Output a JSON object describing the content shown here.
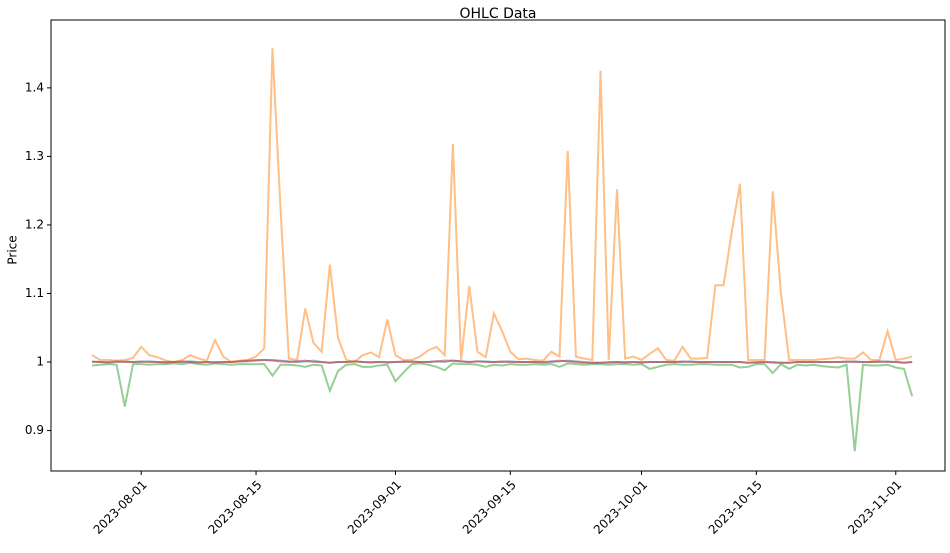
{
  "chart_data": {
    "type": "line",
    "title": "OHLC Data",
    "y_label": "Price",
    "x": [
      "2023-07-26",
      "2023-07-27",
      "2023-07-28",
      "2023-07-29",
      "2023-07-30",
      "2023-07-31",
      "2023-08-01",
      "2023-08-02",
      "2023-08-03",
      "2023-08-04",
      "2023-08-05",
      "2023-08-06",
      "2023-08-07",
      "2023-08-08",
      "2023-08-09",
      "2023-08-10",
      "2023-08-11",
      "2023-08-12",
      "2023-08-13",
      "2023-08-14",
      "2023-08-15",
      "2023-08-16",
      "2023-08-17",
      "2023-08-18",
      "2023-08-19",
      "2023-08-20",
      "2023-08-21",
      "2023-08-22",
      "2023-08-23",
      "2023-08-24",
      "2023-08-25",
      "2023-08-26",
      "2023-08-27",
      "2023-08-28",
      "2023-08-29",
      "2023-08-30",
      "2023-08-31",
      "2023-09-01",
      "2023-09-02",
      "2023-09-03",
      "2023-09-04",
      "2023-09-05",
      "2023-09-06",
      "2023-09-07",
      "2023-09-08",
      "2023-09-09",
      "2023-09-10",
      "2023-09-11",
      "2023-09-12",
      "2023-09-13",
      "2023-09-14",
      "2023-09-15",
      "2023-09-16",
      "2023-09-17",
      "2023-09-18",
      "2023-09-19",
      "2023-09-20",
      "2023-09-21",
      "2023-09-22",
      "2023-09-23",
      "2023-09-24",
      "2023-09-25",
      "2023-09-26",
      "2023-09-27",
      "2023-09-28",
      "2023-09-29",
      "2023-09-30",
      "2023-10-01",
      "2023-10-02",
      "2023-10-03",
      "2023-10-04",
      "2023-10-05",
      "2023-10-06",
      "2023-10-07",
      "2023-10-08",
      "2023-10-09",
      "2023-10-10",
      "2023-10-11",
      "2023-10-12",
      "2023-10-13",
      "2023-10-14",
      "2023-10-15",
      "2023-10-16",
      "2023-10-17",
      "2023-10-18",
      "2023-10-19",
      "2023-10-20",
      "2023-10-21",
      "2023-10-22",
      "2023-10-23",
      "2023-10-24",
      "2023-10-25",
      "2023-10-26",
      "2023-10-27",
      "2023-10-28",
      "2023-10-29",
      "2023-10-30",
      "2023-10-31",
      "2023-11-01",
      "2023-11-02",
      "2023-11-03"
    ],
    "series": [
      {
        "color": "#1f77b4",
        "values": [
          1.001,
          1.0,
          0.999,
          1.0,
          1.001,
          1.0,
          1.0,
          1.001,
          1.0,
          0.999,
          1.0,
          1.0,
          1.001,
          1.0,
          1.0,
          0.999,
          1.0,
          1.0,
          1.001,
          1.001,
          1.002,
          1.003,
          1.003,
          1.002,
          1.001,
          1.0,
          1.001,
          1.002,
          1.0,
          0.999,
          1.0,
          1.0,
          1.001,
          1.0,
          1.0,
          1.0,
          0.999,
          1.0,
          1.0,
          1.001,
          1.0,
          1.0,
          1.001,
          1.0,
          1.002,
          1.001,
          1.0,
          1.001,
          1.001,
          1.0,
          1.0,
          1.001,
          1.0,
          1.0,
          1.0,
          0.999,
          1.0,
          1.001,
          1.002,
          1.001,
          1.0,
          0.999,
          0.999,
          0.999,
          1.0,
          1.0,
          1.0,
          0.999,
          1.0,
          1.0,
          1.0,
          1.0,
          1.0,
          1.001,
          1.0,
          1.0,
          1.0,
          1.0,
          1.0,
          1.0,
          0.999,
          0.999,
          1.0,
          1.0,
          0.999,
          0.999,
          1.0,
          1.0,
          1.0,
          1.0,
          1.0,
          1.0,
          1.0,
          1.001,
          1.0,
          1.0,
          1.0,
          1.001,
          1.0,
          0.999,
          1.0
        ]
      },
      {
        "color": "#ff7f0e",
        "values": [
          1.01,
          1.003,
          1.003,
          1.002,
          1.003,
          1.006,
          1.022,
          1.01,
          1.007,
          1.002,
          1.0,
          1.003,
          1.01,
          1.005,
          1.002,
          1.032,
          1.008,
          1.0,
          1.002,
          1.003,
          1.008,
          1.02,
          1.458,
          1.22,
          1.005,
          1.003,
          1.078,
          1.028,
          1.015,
          1.142,
          1.035,
          1.003,
          1.0,
          1.01,
          1.014,
          1.007,
          1.062,
          1.01,
          1.003,
          1.003,
          1.008,
          1.017,
          1.022,
          1.01,
          1.318,
          1.003,
          1.111,
          1.015,
          1.007,
          1.071,
          1.045,
          1.015,
          1.004,
          1.005,
          1.003,
          1.002,
          1.015,
          1.008,
          1.308,
          1.008,
          1.005,
          1.003,
          1.425,
          1.003,
          1.252,
          1.005,
          1.008,
          1.003,
          1.012,
          1.02,
          1.003,
          1.002,
          1.022,
          1.005,
          1.005,
          1.006,
          1.112,
          1.112,
          1.19,
          1.26,
          1.003,
          1.003,
          1.003,
          1.249,
          1.1,
          1.003,
          1.003,
          1.003,
          1.003,
          1.004,
          1.005,
          1.007,
          1.005,
          1.005,
          1.014,
          1.003,
          1.003,
          1.045,
          1.003,
          1.005,
          1.008
        ]
      },
      {
        "color": "#2ca02c",
        "values": [
          0.995,
          0.996,
          0.997,
          0.996,
          0.935,
          0.997,
          0.997,
          0.996,
          0.997,
          0.997,
          0.998,
          0.997,
          0.999,
          0.997,
          0.996,
          0.998,
          0.997,
          0.996,
          0.997,
          0.997,
          0.997,
          0.997,
          0.98,
          0.996,
          0.996,
          0.995,
          0.993,
          0.996,
          0.995,
          0.958,
          0.987,
          0.996,
          0.997,
          0.993,
          0.993,
          0.995,
          0.996,
          0.972,
          0.985,
          0.997,
          0.998,
          0.996,
          0.993,
          0.988,
          0.998,
          0.997,
          0.997,
          0.996,
          0.993,
          0.996,
          0.995,
          0.997,
          0.996,
          0.996,
          0.997,
          0.996,
          0.997,
          0.993,
          0.998,
          0.997,
          0.996,
          0.997,
          0.997,
          0.996,
          0.997,
          0.997,
          0.996,
          0.997,
          0.99,
          0.993,
          0.996,
          0.997,
          0.996,
          0.996,
          0.997,
          0.997,
          0.996,
          0.996,
          0.996,
          0.992,
          0.993,
          0.997,
          0.997,
          0.984,
          0.997,
          0.99,
          0.996,
          0.995,
          0.996,
          0.994,
          0.993,
          0.992,
          0.996,
          0.87,
          0.996,
          0.995,
          0.995,
          0.996,
          0.992,
          0.99,
          0.95
        ]
      },
      {
        "color": "#d62728",
        "values": [
          1.0,
          1.0,
          1.0,
          1.001,
          1.0,
          1.0,
          1.001,
          1.0,
          1.0,
          1.0,
          1.0,
          1.001,
          1.0,
          0.999,
          1.0,
          1.0,
          1.0,
          1.0,
          1.001,
          1.002,
          1.003,
          1.003,
          1.002,
          1.001,
          1.0,
          1.001,
          1.002,
          1.0,
          1.0,
          0.999,
          1.0,
          1.0,
          1.001,
          1.0,
          0.999,
          1.0,
          1.0,
          1.0,
          1.001,
          1.0,
          1.0,
          1.0,
          1.001,
          1.002,
          1.002,
          1.001,
          1.0,
          1.001,
          1.0,
          1.0,
          1.001,
          1.0,
          1.0,
          1.0,
          1.0,
          1.0,
          1.001,
          1.002,
          1.001,
          1.0,
          0.999,
          0.999,
          0.999,
          1.0,
          1.0,
          0.999,
          1.0,
          1.0,
          1.0,
          1.0,
          1.0,
          1.0,
          1.001,
          1.0,
          1.0,
          1.0,
          1.0,
          1.0,
          1.0,
          1.0,
          0.999,
          1.0,
          1.0,
          0.999,
          0.999,
          0.999,
          1.0,
          1.0,
          1.0,
          1.0,
          1.0,
          1.0,
          1.001,
          1.0,
          1.0,
          1.0,
          1.001,
          1.0,
          1.0,
          0.999,
          1.0
        ]
      }
    ],
    "xlim": [
      "2023-07-21",
      "2023-11-07"
    ],
    "xticks": [
      "2023-08-01",
      "2023-08-15",
      "2023-09-01",
      "2023-09-15",
      "2023-10-01",
      "2023-10-15",
      "2023-11-01"
    ],
    "ylim": [
      0.841,
      1.499
    ],
    "yticks": [
      0.9,
      1.0,
      1.1,
      1.2,
      1.3,
      1.4
    ]
  }
}
